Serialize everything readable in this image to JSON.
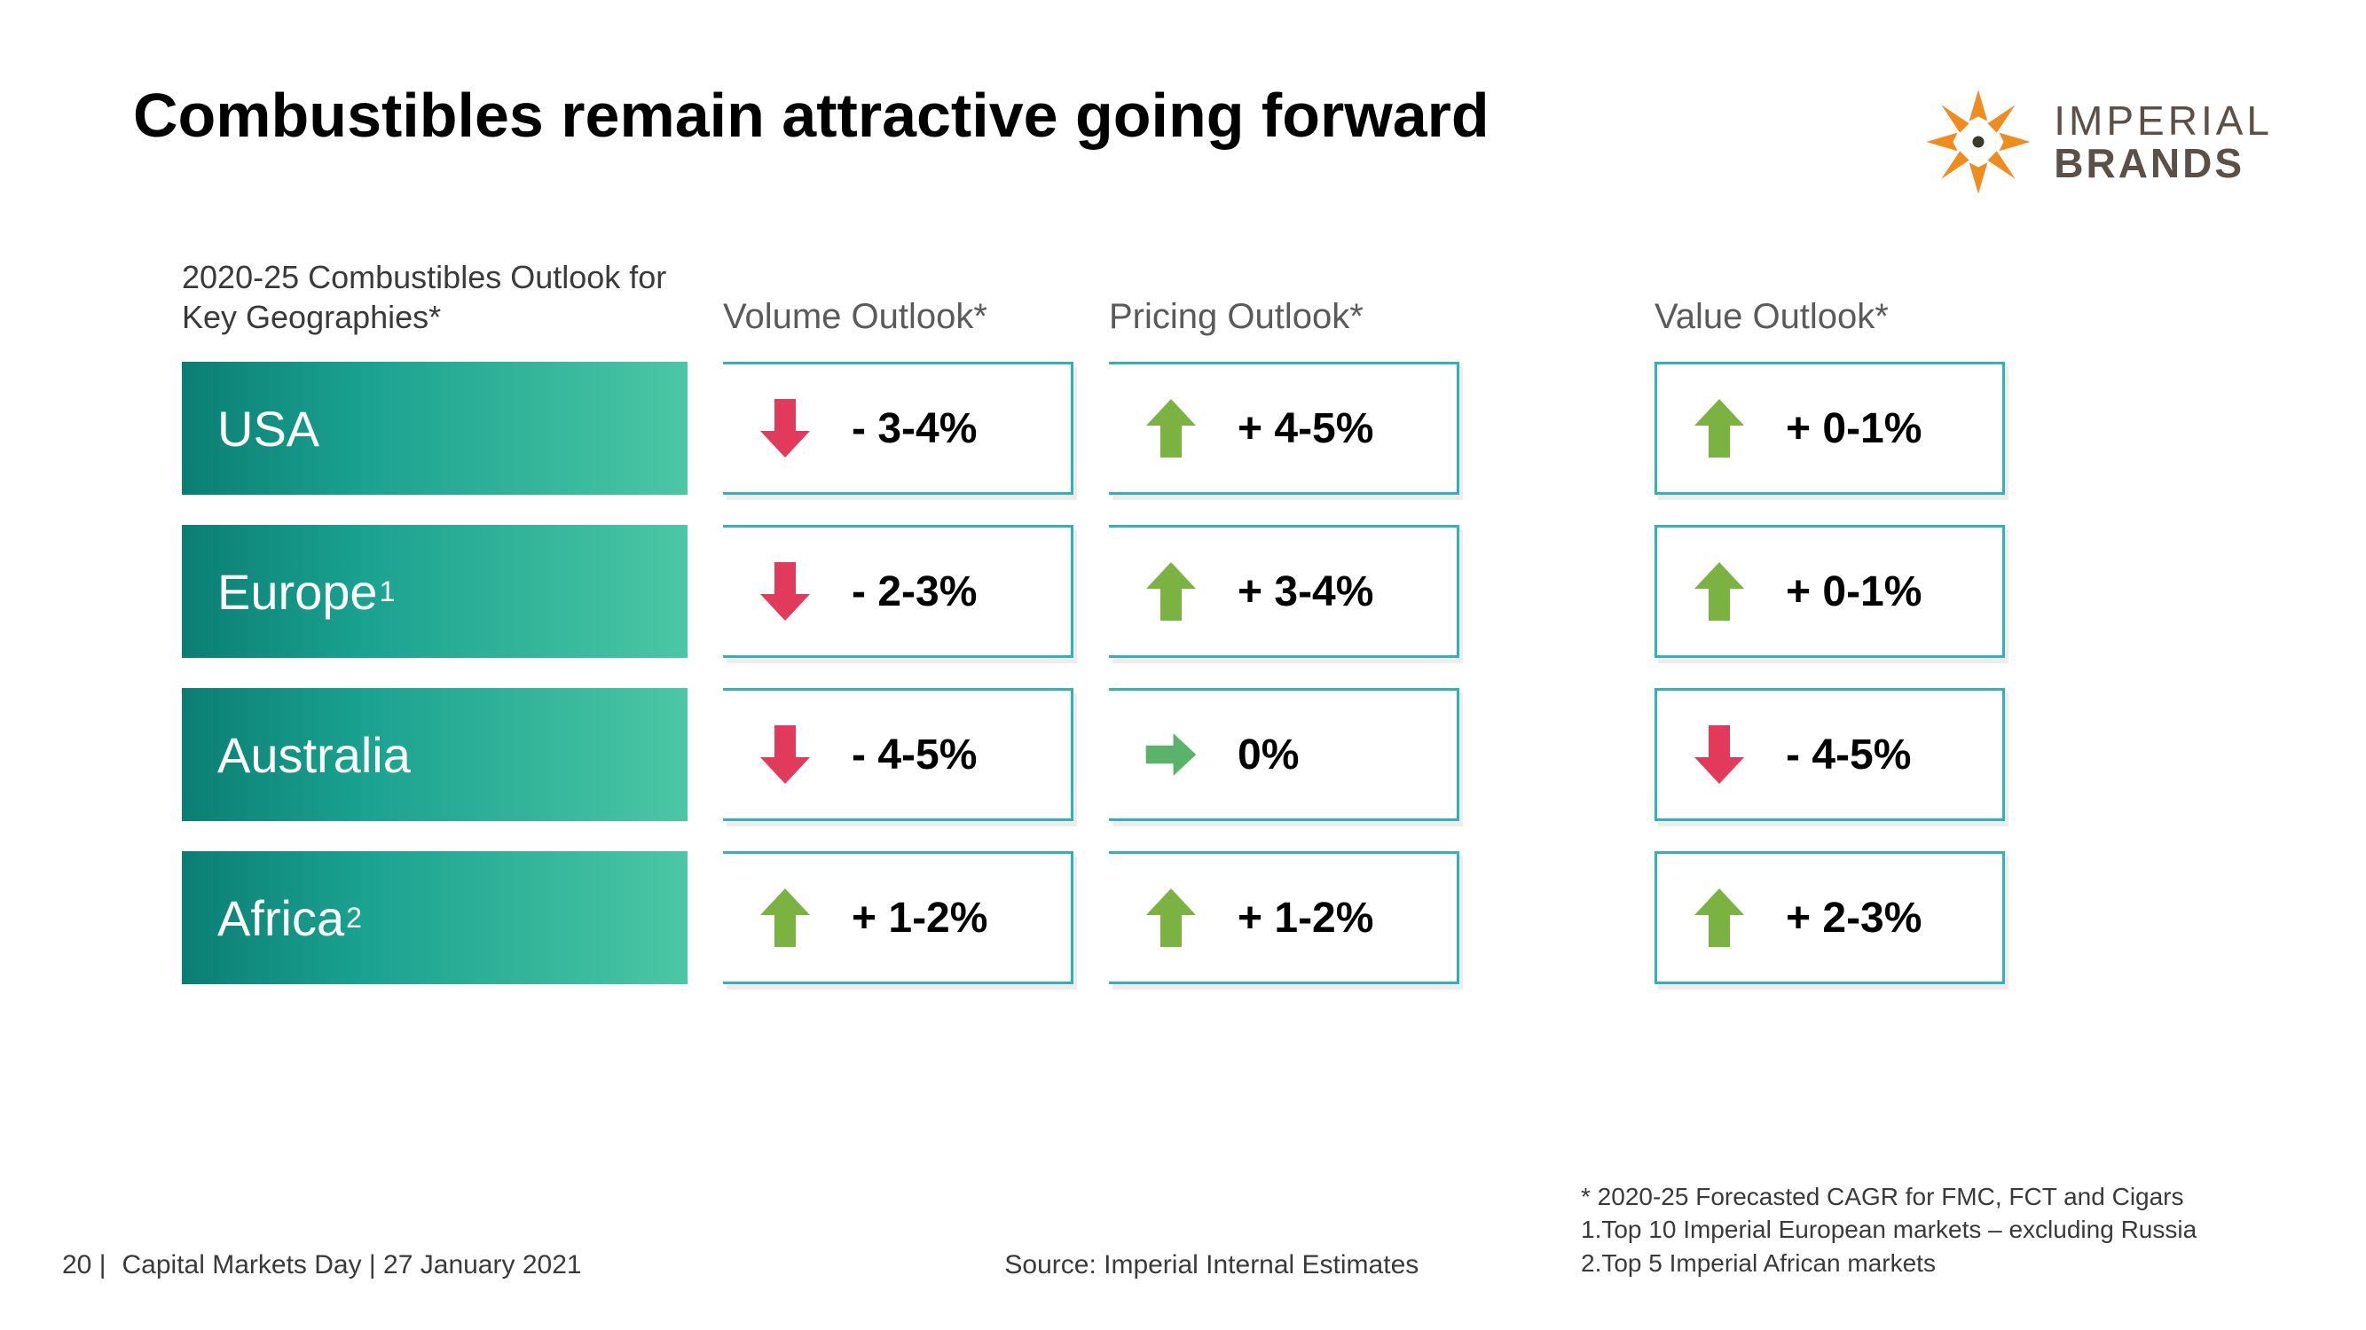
{
  "title": "Combustibles remain attractive going forward",
  "logo": {
    "line1": "IMPERIAL",
    "line2": "BRANDS",
    "mark_color": "#f08b1d",
    "dot_color": "#3a3a2a",
    "text_color": "#5a5048"
  },
  "colors": {
    "up": "#7bb241",
    "down": "#e13a5b",
    "flat": "#5bb36b",
    "cell_border": "#2fb3b8",
    "geo_grad_start": "#0b7e73",
    "geo_grad_end": "#4bc7a4",
    "header_text": "#5a5a5a",
    "body_text": "#000000"
  },
  "headers": {
    "geo": "2020-25 Combustibles Outlook for Key Geographies*",
    "volume": "Volume Outlook*",
    "pricing": "Pricing Outlook*",
    "value": "Value Outlook*"
  },
  "rows": [
    {
      "geo": "USA",
      "geo_sup": "",
      "volume": {
        "dir": "down",
        "text": "- 3-4%"
      },
      "pricing": {
        "dir": "up",
        "text": "+ 4-5%"
      },
      "value": {
        "dir": "up",
        "text": "+ 0-1%"
      }
    },
    {
      "geo": "Europe",
      "geo_sup": "1",
      "volume": {
        "dir": "down",
        "text": "- 2-3%"
      },
      "pricing": {
        "dir": "up",
        "text": "+ 3-4%"
      },
      "value": {
        "dir": "up",
        "text": "+ 0-1%"
      }
    },
    {
      "geo": "Australia",
      "geo_sup": "",
      "volume": {
        "dir": "down",
        "text": "- 4-5%"
      },
      "pricing": {
        "dir": "flat",
        "text": "0%"
      },
      "value": {
        "dir": "down",
        "text": "- 4-5%"
      }
    },
    {
      "geo": "Africa",
      "geo_sup": "2",
      "volume": {
        "dir": "up",
        "text": "+ 1-2%"
      },
      "pricing": {
        "dir": "up",
        "text": "+ 1-2%"
      },
      "value": {
        "dir": "up",
        "text": "+ 2-3%"
      }
    }
  ],
  "footer": {
    "page": "20 |",
    "event": "Capital Markets Day | 27 January 2021",
    "source": "Source: Imperial Internal Estimates",
    "note1": "* 2020-25 Forecasted CAGR for FMC, FCT and Cigars",
    "note2": "1.Top 10 Imperial European markets – excluding Russia",
    "note3": "2.Top 5 Imperial African markets"
  }
}
